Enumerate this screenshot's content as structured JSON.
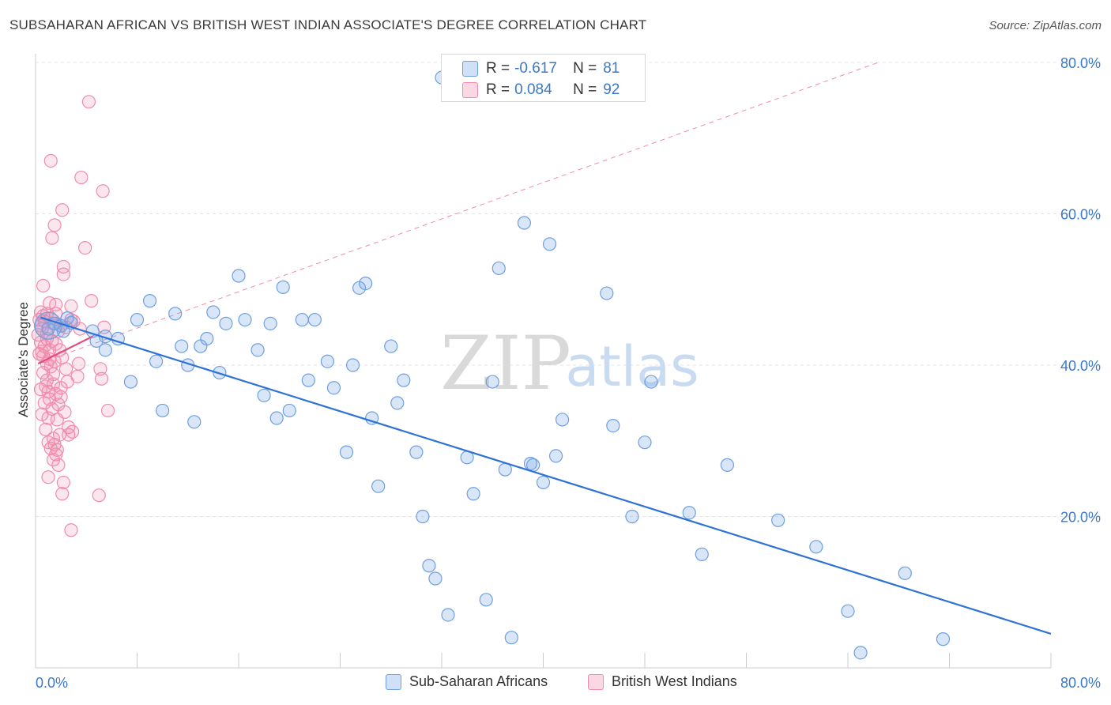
{
  "title": "SUBSAHARAN AFRICAN VS BRITISH WEST INDIAN ASSOCIATE'S DEGREE CORRELATION CHART",
  "source": "Source: ZipAtlas.com",
  "watermark": {
    "zip": "ZIP",
    "atlas": "atlas"
  },
  "legend_top": {
    "rows": [
      {
        "r_label": "R =",
        "r_value": "-0.617",
        "n_label": "N =",
        "n_value": "81"
      },
      {
        "r_label": "R =",
        "r_value": "0.084",
        "n_label": "N =",
        "n_value": "92"
      }
    ]
  },
  "legend_bottom": {
    "series_a": "Sub-Saharan Africans",
    "series_b": "British West Indians"
  },
  "colors": {
    "blue_fill": "rgba(120,165,230,0.28)",
    "blue_stroke": "#6f9fe0",
    "blue_line": "#2f72d6",
    "pink_fill": "rgba(240,140,175,0.22)",
    "pink_stroke": "#f08bac",
    "pink_line": "#e0507f",
    "axis_text": "#3a78cc",
    "grid": "#e6e6e6"
  },
  "chart_data": {
    "type": "scatter",
    "title": "SUBSAHARAN AFRICAN VS BRITISH WEST INDIAN ASSOCIATE'S DEGREE CORRELATION CHART",
    "xlabel": "",
    "ylabel": "Associate's Degree",
    "xlim": [
      0,
      80
    ],
    "ylim": [
      0,
      80
    ],
    "x_tick_labels": [
      "0.0%",
      "80.0%"
    ],
    "y_ticks": [
      20,
      40,
      60,
      80
    ],
    "y_tick_labels": [
      "20.0%",
      "40.0%",
      "60.0%",
      "80.0%"
    ],
    "grid": true,
    "legend_position": "bottom",
    "series": [
      {
        "name": "Sub-Saharan Africans",
        "color": "#6f9fe0",
        "r": -0.617,
        "n": 81,
        "trend": {
          "x": [
            0.4,
            80
          ],
          "y": [
            46.3,
            4.5
          ]
        },
        "points": [
          [
            1.0,
            44.8
          ],
          [
            1.5,
            45.5
          ],
          [
            2.0,
            45.2
          ],
          [
            2.8,
            45.6
          ],
          [
            2.2,
            44.5
          ],
          [
            4.5,
            44.5
          ],
          [
            4.8,
            43.2
          ],
          [
            5.5,
            42.0
          ],
          [
            5.5,
            43.8
          ],
          [
            6.5,
            43.5
          ],
          [
            7.5,
            37.8
          ],
          [
            8.0,
            46.0
          ],
          [
            9.0,
            48.5
          ],
          [
            9.5,
            40.5
          ],
          [
            10.0,
            34.0
          ],
          [
            11.0,
            46.8
          ],
          [
            11.5,
            42.5
          ],
          [
            12.0,
            40.0
          ],
          [
            12.5,
            32.5
          ],
          [
            13.0,
            42.5
          ],
          [
            13.5,
            43.5
          ],
          [
            14.0,
            47.0
          ],
          [
            14.5,
            39.0
          ],
          [
            15.0,
            45.5
          ],
          [
            16.0,
            51.8
          ],
          [
            16.5,
            46.0
          ],
          [
            17.5,
            42.0
          ],
          [
            18.0,
            36.0
          ],
          [
            18.5,
            45.5
          ],
          [
            19.0,
            33.0
          ],
          [
            19.5,
            50.3
          ],
          [
            20.0,
            34.0
          ],
          [
            21.0,
            46.0
          ],
          [
            21.5,
            38.0
          ],
          [
            22.0,
            46.0
          ],
          [
            23.0,
            40.5
          ],
          [
            23.5,
            37.0
          ],
          [
            24.5,
            28.5
          ],
          [
            25.0,
            40.0
          ],
          [
            25.5,
            50.2
          ],
          [
            26.0,
            50.8
          ],
          [
            26.5,
            33.0
          ],
          [
            27.0,
            24.0
          ],
          [
            28.0,
            42.5
          ],
          [
            28.5,
            35.0
          ],
          [
            29.0,
            38.0
          ],
          [
            30.0,
            28.5
          ],
          [
            30.5,
            20.0
          ],
          [
            31.0,
            13.5
          ],
          [
            31.5,
            11.8
          ],
          [
            32.0,
            78.0
          ],
          [
            32.5,
            7.0
          ],
          [
            34.0,
            27.8
          ],
          [
            34.5,
            23.0
          ],
          [
            35.5,
            9.0
          ],
          [
            36.0,
            37.8
          ],
          [
            36.5,
            52.8
          ],
          [
            37.0,
            26.2
          ],
          [
            37.5,
            4.0
          ],
          [
            38.5,
            58.8
          ],
          [
            39.0,
            27.0
          ],
          [
            39.2,
            26.8
          ],
          [
            40.0,
            24.5
          ],
          [
            40.5,
            56.0
          ],
          [
            41.0,
            28.0
          ],
          [
            41.5,
            32.8
          ],
          [
            45.0,
            49.5
          ],
          [
            45.5,
            32.0
          ],
          [
            47.0,
            20.0
          ],
          [
            48.0,
            29.8
          ],
          [
            48.5,
            37.8
          ],
          [
            51.5,
            20.5
          ],
          [
            52.5,
            15.0
          ],
          [
            54.5,
            26.8
          ],
          [
            58.5,
            19.5
          ],
          [
            61.5,
            16.0
          ],
          [
            64.0,
            7.5
          ],
          [
            65.0,
            2.0
          ],
          [
            68.5,
            12.5
          ],
          [
            71.5,
            3.8
          ],
          [
            2.5,
            46.2
          ]
        ]
      },
      {
        "name": "British West Indians",
        "color": "#f08bac",
        "r": 0.084,
        "n": 92,
        "trend": {
          "x": [
            0.2,
            4.5
          ],
          "y": [
            40.2,
            43.8
          ]
        },
        "trend_extended": {
          "x": [
            0.2,
            80
          ],
          "y": [
            40.2,
            80
          ]
        },
        "points": [
          [
            4.2,
            74.8
          ],
          [
            1.2,
            67.0
          ],
          [
            3.6,
            64.8
          ],
          [
            5.3,
            63.0
          ],
          [
            2.1,
            60.5
          ],
          [
            1.5,
            58.5
          ],
          [
            1.3,
            56.8
          ],
          [
            3.9,
            55.5
          ],
          [
            2.2,
            53.0
          ],
          [
            2.2,
            52.0
          ],
          [
            0.6,
            50.5
          ],
          [
            4.4,
            48.5
          ],
          [
            1.1,
            48.2
          ],
          [
            1.6,
            48.0
          ],
          [
            2.8,
            47.8
          ],
          [
            0.4,
            47.0
          ],
          [
            0.9,
            46.8
          ],
          [
            1.2,
            46.2
          ],
          [
            0.3,
            46.0
          ],
          [
            0.7,
            45.8
          ],
          [
            1.4,
            45.5
          ],
          [
            2.0,
            45.2
          ],
          [
            2.4,
            45.0
          ],
          [
            0.5,
            44.8
          ],
          [
            1.8,
            44.5
          ],
          [
            5.4,
            45.0
          ],
          [
            0.2,
            44.0
          ],
          [
            0.9,
            43.5
          ],
          [
            0.4,
            43.0
          ],
          [
            1.6,
            42.8
          ],
          [
            0.7,
            42.5
          ],
          [
            1.1,
            42.0
          ],
          [
            0.3,
            41.5
          ],
          [
            0.6,
            41.2
          ],
          [
            2.1,
            41.0
          ],
          [
            1.5,
            40.5
          ],
          [
            0.9,
            40.2
          ],
          [
            1.2,
            39.8
          ],
          [
            3.4,
            40.2
          ],
          [
            5.1,
            39.5
          ],
          [
            0.6,
            39.0
          ],
          [
            3.3,
            38.5
          ],
          [
            5.2,
            38.2
          ],
          [
            2.5,
            37.8
          ],
          [
            1.4,
            37.5
          ],
          [
            0.8,
            37.2
          ],
          [
            0.4,
            36.8
          ],
          [
            1.0,
            36.5
          ],
          [
            1.6,
            36.2
          ],
          [
            2.0,
            35.8
          ],
          [
            1.1,
            35.5
          ],
          [
            0.7,
            35.0
          ],
          [
            1.8,
            34.8
          ],
          [
            1.3,
            34.2
          ],
          [
            5.7,
            34.0
          ],
          [
            2.3,
            33.8
          ],
          [
            0.5,
            33.5
          ],
          [
            1.0,
            33.0
          ],
          [
            1.7,
            32.8
          ],
          [
            2.6,
            31.8
          ],
          [
            0.8,
            31.5
          ],
          [
            2.9,
            31.2
          ],
          [
            1.9,
            30.8
          ],
          [
            2.6,
            30.8
          ],
          [
            1.4,
            30.3
          ],
          [
            1.0,
            29.8
          ],
          [
            1.5,
            29.5
          ],
          [
            1.2,
            29.0
          ],
          [
            1.7,
            28.8
          ],
          [
            1.6,
            28.2
          ],
          [
            1.4,
            27.5
          ],
          [
            1.8,
            26.8
          ],
          [
            1.0,
            25.2
          ],
          [
            2.2,
            24.5
          ],
          [
            2.1,
            23.0
          ],
          [
            5.0,
            22.8
          ],
          [
            2.8,
            18.2
          ],
          [
            0.4,
            45.2
          ],
          [
            0.9,
            44.2
          ],
          [
            1.3,
            43.2
          ],
          [
            1.9,
            42.0
          ],
          [
            0.5,
            41.8
          ],
          [
            1.1,
            40.8
          ],
          [
            2.4,
            39.5
          ],
          [
            1.4,
            38.8
          ],
          [
            0.9,
            38.0
          ],
          [
            2.0,
            37.0
          ],
          [
            3.0,
            45.8
          ],
          [
            3.5,
            44.8
          ],
          [
            0.6,
            46.5
          ],
          [
            1.6,
            46.8
          ],
          [
            2.8,
            46.0
          ]
        ]
      }
    ]
  }
}
